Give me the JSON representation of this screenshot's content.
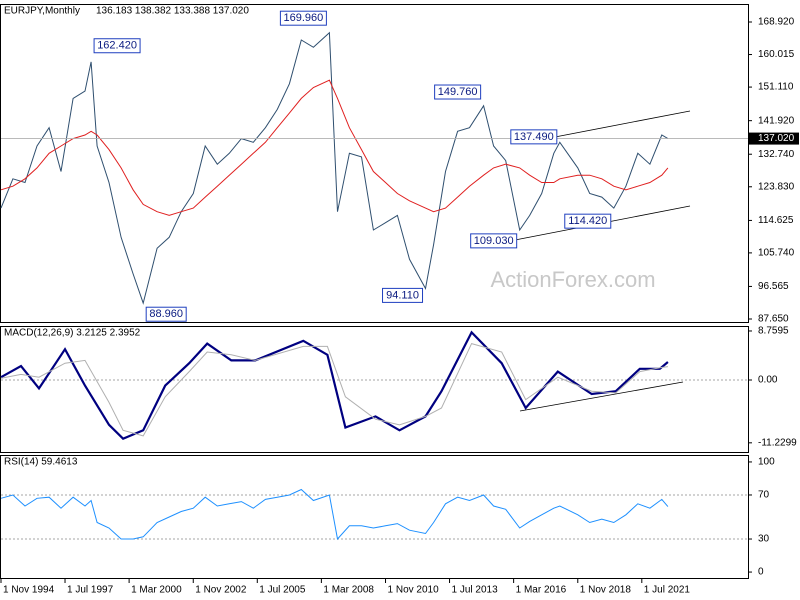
{
  "chart_data": [
    {
      "type": "line",
      "title": "EURJPY,Monthly",
      "subtitle": "136.183 138.382 133.388 137.020",
      "watermark": "ActionForex.com",
      "x": [
        "1 Nov 1994",
        "1 May 1995",
        "1 Nov 1995",
        "1 May 1996",
        "1 Nov 1996",
        "1 May 1997",
        "1 Nov 1997",
        "1 May 1998",
        "1 Aug 1998",
        "1 Nov 1998",
        "1 May 1999",
        "1 Nov 1999",
        "1 May 2000",
        "1 Oct 2000",
        "1 May 2001",
        "1 Nov 2001",
        "1 May 2002",
        "1 Nov 2002",
        "1 May 2003",
        "1 Nov 2003",
        "1 May 2004",
        "1 Nov 2004",
        "1 May 2005",
        "1 Nov 2005",
        "1 May 2006",
        "1 Nov 2006",
        "1 May 2007",
        "1 Nov 2007",
        "1 Jul 2008",
        "1 Nov 2008",
        "1 May 2009",
        "1 Nov 2009",
        "1 May 2010",
        "1 Nov 2010",
        "1 May 2011",
        "1 Nov 2011",
        "1 Jul 2012",
        "1 Nov 2012",
        "1 May 2013",
        "1 Nov 2013",
        "1 May 2014",
        "1 Dec 2014",
        "1 May 2015",
        "1 Nov 2015",
        "1 Jun 2016",
        "1 Nov 2016",
        "1 May 2017",
        "1 Nov 2017",
        "1 Feb 2018",
        "1 Nov 2018",
        "1 May 2019",
        "1 Nov 2019",
        "1 May 2020",
        "1 Nov 2020",
        "1 May 2021",
        "1 Nov 2021",
        "1 May 2022",
        "1 Aug 2022"
      ],
      "series": [
        {
          "color": "#2f4f6f",
          "values": [
            118,
            126,
            125,
            135,
            140,
            128,
            148,
            150,
            158,
            135,
            125,
            110,
            100,
            92,
            107,
            110,
            117,
            122,
            135,
            130,
            133,
            137,
            136,
            140,
            145,
            152,
            164,
            162,
            166,
            117,
            133,
            132,
            112,
            114,
            116,
            104,
            96,
            108,
            128,
            139,
            140,
            146,
            135,
            131,
            112,
            116,
            122,
            133,
            136,
            129,
            122,
            121,
            118,
            124,
            133,
            130,
            138,
            137.02
          ]
        },
        {
          "color": "#e02020",
          "values": [
            123,
            124,
            126,
            129,
            133,
            135,
            137,
            138,
            139,
            138,
            134,
            129,
            123,
            119,
            117,
            116,
            117,
            118,
            121,
            124,
            127,
            130,
            133,
            136,
            140,
            144,
            148,
            151,
            153,
            148,
            140,
            134,
            128,
            125,
            122,
            120,
            118,
            117,
            118,
            121,
            124,
            127,
            129,
            130,
            129,
            127,
            125,
            125,
            126,
            127,
            127,
            126,
            124,
            123,
            124,
            125,
            127,
            129
          ]
        }
      ],
      "ylim": [
        86.83,
        173.57
      ],
      "yticks": [
        {
          "value": 168.92,
          "label": "168.920"
        },
        160.015,
        {
          "value": 151.11,
          "label": "151.110"
        },
        {
          "value": 141.92,
          "label": "141.920"
        },
        {
          "value": 132.74,
          "label": "132.740"
        },
        {
          "value": 123.83,
          "label": "123.830"
        },
        114.625,
        {
          "value": 105.74,
          "label": "105.740"
        },
        96.565,
        {
          "value": 87.65,
          "label": "87.650"
        }
      ],
      "last_price": {
        "value": 137.02,
        "label": "137.020"
      },
      "annotations": [
        {
          "x": "1 Aug 1998",
          "value": 162.42,
          "label": "162.420"
        },
        {
          "x": "1 Oct 2000",
          "value": 88.96,
          "label": "88.960"
        },
        {
          "x": "1 Jul 2008",
          "value": 169.96,
          "label": "169.960"
        },
        {
          "x": "1 Jul 2012",
          "value": 94.11,
          "label": "94.110"
        },
        {
          "x": "1 Dec 2014",
          "value": 149.76,
          "label": "149.760"
        },
        {
          "x": "1 Jun 2016",
          "value": 109.03,
          "label": "109.030"
        },
        {
          "x": "1 Feb 2018",
          "value": 137.49,
          "label": "137.490"
        },
        {
          "x": "1 May 2020",
          "value": 114.42,
          "label": "114.420"
        }
      ]
    },
    {
      "type": "line",
      "title": "MACD(12,26,9) 3.2125 2.3952",
      "x": [
        "1 Nov 1994",
        "1 Sep 1995",
        "1 Jun 1996",
        "1 Jul 1997",
        "1 May 1998",
        "1 May 1999",
        "1 Dec 1999",
        "1 Oct 2000",
        "1 Sep 2001",
        "1 Sep 2002",
        "1 Jun 2003",
        "1 Jun 2004",
        "1 Jun 2005",
        "1 Jun 2007",
        "1 Jun 2008",
        "1 Mar 2009",
        "1 Jun 2010",
        "1 Jun 2011",
        "1 Jul 2012",
        "1 Mar 2013",
        "1 Jun 2014",
        "1 Sep 2015",
        "1 Sep 2016",
        "1 Jan 2018",
        "1 Jun 2019",
        "1 Jun 2020",
        "1 Jun 2021",
        "1 Apr 2022",
        "1 Aug 2022"
      ],
      "series": [
        {
          "color": "#000080",
          "values": [
            0.5,
            2.5,
            -1.5,
            5.5,
            -1,
            -8,
            -10.5,
            -9,
            -1,
            3,
            6.5,
            3.5,
            3.5,
            7,
            4.5,
            -8.5,
            -6.5,
            -9,
            -6.5,
            -2,
            8.5,
            3,
            -5,
            1.5,
            -2.5,
            -2,
            2,
            2,
            3.2125
          ]
        },
        {
          "color": "#b0b0b0",
          "values": [
            0.3,
            1,
            0.5,
            3,
            3.5,
            -4,
            -9,
            -10,
            -3,
            1.5,
            5,
            4.5,
            3.5,
            6,
            6,
            -3,
            -7,
            -8,
            -6.5,
            -5,
            6.5,
            5,
            -3.5,
            0.5,
            -2,
            -2.3,
            1.5,
            2.2,
            2.3952
          ]
        }
      ],
      "ylim": [
        -12.87,
        9.47
      ],
      "yticks": [
        8.7595,
        {
          "value": 0,
          "label": "0.00"
        },
        -11.2299
      ],
      "reference_lines": [
        0
      ]
    },
    {
      "type": "line",
      "title": "RSI(14) 59.4613",
      "x": [
        "1 Nov 1994",
        "1 May 1995",
        "1 Nov 1995",
        "1 May 1996",
        "1 Nov 1996",
        "1 May 1997",
        "1 Nov 1997",
        "1 May 1998",
        "1 Aug 1998",
        "1 Nov 1998",
        "1 May 1999",
        "1 Nov 1999",
        "1 May 2000",
        "1 Oct 2000",
        "1 May 2001",
        "1 Nov 2001",
        "1 May 2002",
        "1 Nov 2002",
        "1 May 2003",
        "1 Nov 2003",
        "1 May 2004",
        "1 Nov 2004",
        "1 May 2005",
        "1 Nov 2005",
        "1 May 2006",
        "1 Nov 2006",
        "1 May 2007",
        "1 Nov 2007",
        "1 Jul 2008",
        "1 Nov 2008",
        "1 May 2009",
        "1 Nov 2009",
        "1 May 2010",
        "1 Nov 2010",
        "1 May 2011",
        "1 Nov 2011",
        "1 Jul 2012",
        "1 Nov 2012",
        "1 May 2013",
        "1 Nov 2013",
        "1 May 2014",
        "1 Dec 2014",
        "1 May 2015",
        "1 Nov 2015",
        "1 Jun 2016",
        "1 Nov 2016",
        "1 May 2017",
        "1 Nov 2017",
        "1 Feb 2018",
        "1 Nov 2018",
        "1 May 2019",
        "1 Nov 2019",
        "1 May 2020",
        "1 Nov 2020",
        "1 May 2021",
        "1 Nov 2021",
        "1 May 2022",
        "1 Aug 2022"
      ],
      "series": [
        {
          "color": "#1e90ff",
          "values": [
            67,
            70,
            60,
            67,
            68,
            58,
            68,
            60,
            65,
            45,
            40,
            30,
            30,
            32,
            45,
            50,
            55,
            58,
            68,
            60,
            62,
            64,
            58,
            66,
            68,
            70,
            75,
            65,
            70,
            30,
            42,
            42,
            40,
            42,
            44,
            38,
            35,
            45,
            62,
            68,
            65,
            70,
            60,
            57,
            40,
            46,
            52,
            58,
            60,
            52,
            45,
            48,
            45,
            52,
            62,
            58,
            66,
            59.4613
          ]
        }
      ],
      "ylim": [
        -5.4,
        105.4
      ],
      "yticks": [
        100,
        70,
        30,
        0
      ],
      "reference_lines": [
        70,
        30
      ],
      "xlim": [
        "1 Nov 1994",
        "1 Dec 2025"
      ],
      "xticks": [
        "1 Nov 1994",
        "1 Jul 1997",
        "1 Mar 2000",
        "1 Nov 2002",
        "1 Jul 2005",
        "1 Mar 2008",
        "1 Nov 2010",
        "1 Jul 2013",
        "1 Mar 2016",
        "1 Nov 2018",
        "1 Jul 2021"
      ]
    }
  ]
}
